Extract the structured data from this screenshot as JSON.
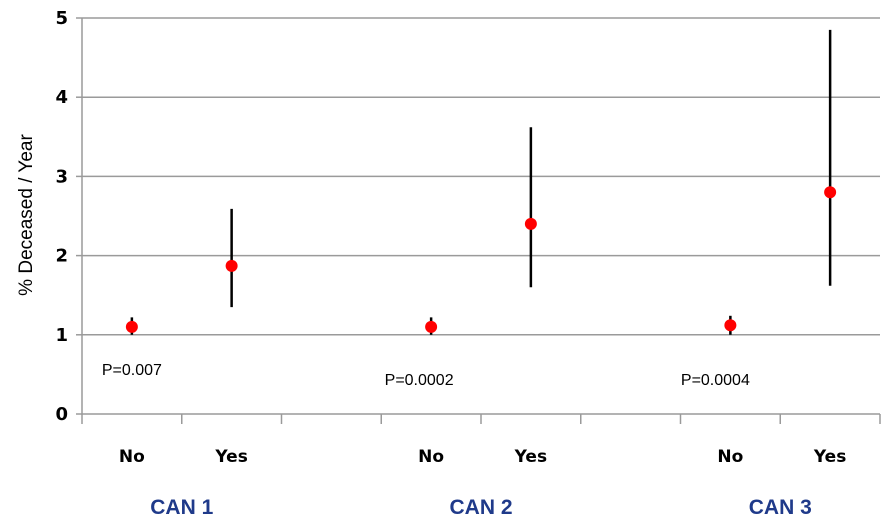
{
  "chart_data": {
    "type": "scatter",
    "ylabel": "% Deceased / Year",
    "ylim": [
      0,
      5
    ],
    "yticks": [
      "0",
      "1",
      "2",
      "3",
      "4",
      "5"
    ],
    "grid": true,
    "groups": [
      {
        "label": "CAN 1",
        "pvalue": "P=0.007",
        "points": [
          {
            "category": "No",
            "value": 1.1,
            "lower": 1.0,
            "upper": 1.22
          },
          {
            "category": "Yes",
            "value": 1.87,
            "lower": 1.35,
            "upper": 2.59
          }
        ]
      },
      {
        "label": "CAN 2",
        "pvalue": "P=0.0002",
        "points": [
          {
            "category": "No",
            "value": 1.1,
            "lower": 1.0,
            "upper": 1.22
          },
          {
            "category": "Yes",
            "value": 2.4,
            "lower": 1.6,
            "upper": 3.62
          }
        ]
      },
      {
        "label": "CAN 3",
        "pvalue": "P=0.0004",
        "points": [
          {
            "category": "No",
            "value": 1.12,
            "lower": 1.0,
            "upper": 1.24
          },
          {
            "category": "Yes",
            "value": 2.8,
            "lower": 1.62,
            "upper": 4.85
          }
        ]
      }
    ],
    "colors": {
      "marker": "#ff0000",
      "errorbar": "#000000",
      "grid": "#9a9a9a",
      "group_label": "#1f3a8a"
    }
  }
}
